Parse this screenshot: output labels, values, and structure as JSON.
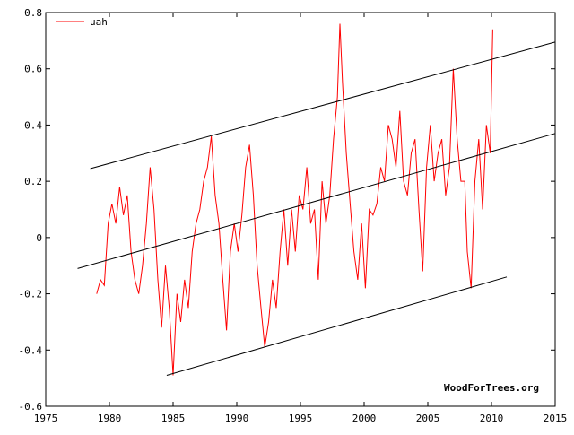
{
  "chart_data": {
    "type": "line",
    "title": "",
    "xlabel": "",
    "ylabel": "",
    "xlim": [
      1975,
      2015
    ],
    "ylim": [
      -0.6,
      0.8
    ],
    "x_ticks": [
      "1975",
      "1980",
      "1985",
      "1990",
      "1995",
      "2000",
      "2005",
      "2010",
      "2015"
    ],
    "y_ticks": [
      "-0.6",
      "-0.4",
      "-0.2",
      "0",
      "0.2",
      "0.4",
      "0.6",
      "0.8"
    ],
    "grid": false,
    "legend_position": "top-left",
    "watermark": "WoodForTrees.org",
    "series": [
      {
        "name": "uah",
        "color": "#ff0000",
        "x": [
          1979.0,
          1979.3,
          1979.6,
          1979.9,
          1980.2,
          1980.5,
          1980.8,
          1981.1,
          1981.4,
          1981.7,
          1982.0,
          1982.3,
          1982.6,
          1982.9,
          1983.2,
          1983.5,
          1983.8,
          1984.1,
          1984.4,
          1984.7,
          1985.0,
          1985.3,
          1985.6,
          1985.9,
          1986.2,
          1986.5,
          1986.8,
          1987.1,
          1987.4,
          1987.7,
          1988.0,
          1988.3,
          1988.6,
          1988.9,
          1989.2,
          1989.5,
          1989.8,
          1990.1,
          1990.4,
          1990.7,
          1991.0,
          1991.3,
          1991.6,
          1991.9,
          1992.2,
          1992.5,
          1992.8,
          1993.1,
          1993.4,
          1993.7,
          1994.0,
          1994.3,
          1994.6,
          1994.9,
          1995.2,
          1995.5,
          1995.8,
          1996.1,
          1996.4,
          1996.7,
          1997.0,
          1997.3,
          1997.6,
          1997.9,
          1998.1,
          1998.3,
          1998.6,
          1998.9,
          1999.2,
          1999.5,
          1999.8,
          2000.1,
          2000.4,
          2000.7,
          2001.0,
          2001.3,
          2001.6,
          2001.9,
          2002.2,
          2002.5,
          2002.8,
          2003.1,
          2003.4,
          2003.7,
          2004.0,
          2004.3,
          2004.6,
          2004.9,
          2005.2,
          2005.5,
          2005.8,
          2006.1,
          2006.4,
          2006.7,
          2007.0,
          2007.3,
          2007.6,
          2007.9,
          2008.1,
          2008.4,
          2008.7,
          2009.0,
          2009.3,
          2009.6,
          2009.9,
          2010.1
        ],
        "values": [
          -0.2,
          -0.15,
          -0.17,
          0.05,
          0.12,
          0.05,
          0.18,
          0.08,
          0.15,
          -0.05,
          -0.15,
          -0.2,
          -0.1,
          0.05,
          0.25,
          0.1,
          -0.15,
          -0.32,
          -0.1,
          -0.25,
          -0.49,
          -0.2,
          -0.3,
          -0.15,
          -0.25,
          -0.05,
          0.05,
          0.1,
          0.2,
          0.25,
          0.36,
          0.15,
          0.05,
          -0.15,
          -0.33,
          -0.05,
          0.05,
          -0.05,
          0.08,
          0.25,
          0.33,
          0.15,
          -0.1,
          -0.25,
          -0.39,
          -0.3,
          -0.15,
          -0.25,
          -0.05,
          0.1,
          -0.1,
          0.1,
          -0.05,
          0.15,
          0.1,
          0.25,
          0.05,
          0.1,
          -0.15,
          0.2,
          0.05,
          0.15,
          0.35,
          0.5,
          0.76,
          0.55,
          0.3,
          0.12,
          -0.05,
          -0.15,
          0.05,
          -0.18,
          0.1,
          0.08,
          0.12,
          0.25,
          0.2,
          0.4,
          0.35,
          0.25,
          0.45,
          0.2,
          0.15,
          0.3,
          0.35,
          0.1,
          -0.12,
          0.25,
          0.4,
          0.2,
          0.3,
          0.35,
          0.15,
          0.25,
          0.6,
          0.35,
          0.2,
          0.2,
          -0.05,
          -0.18,
          0.2,
          0.35,
          0.1,
          0.4,
          0.3,
          0.74
        ]
      },
      {
        "name": "",
        "color": "#000000",
        "x": [
          1977.5,
          2015.0
        ],
        "values": [
          -0.11,
          0.37
        ]
      },
      {
        "name": "",
        "color": "#000000",
        "x": [
          1978.5,
          2015.0
        ],
        "values": [
          0.245,
          0.695
        ]
      },
      {
        "name": "",
        "color": "#000000",
        "x": [
          1984.5,
          2011.2
        ],
        "values": [
          -0.49,
          -0.14
        ]
      }
    ]
  }
}
